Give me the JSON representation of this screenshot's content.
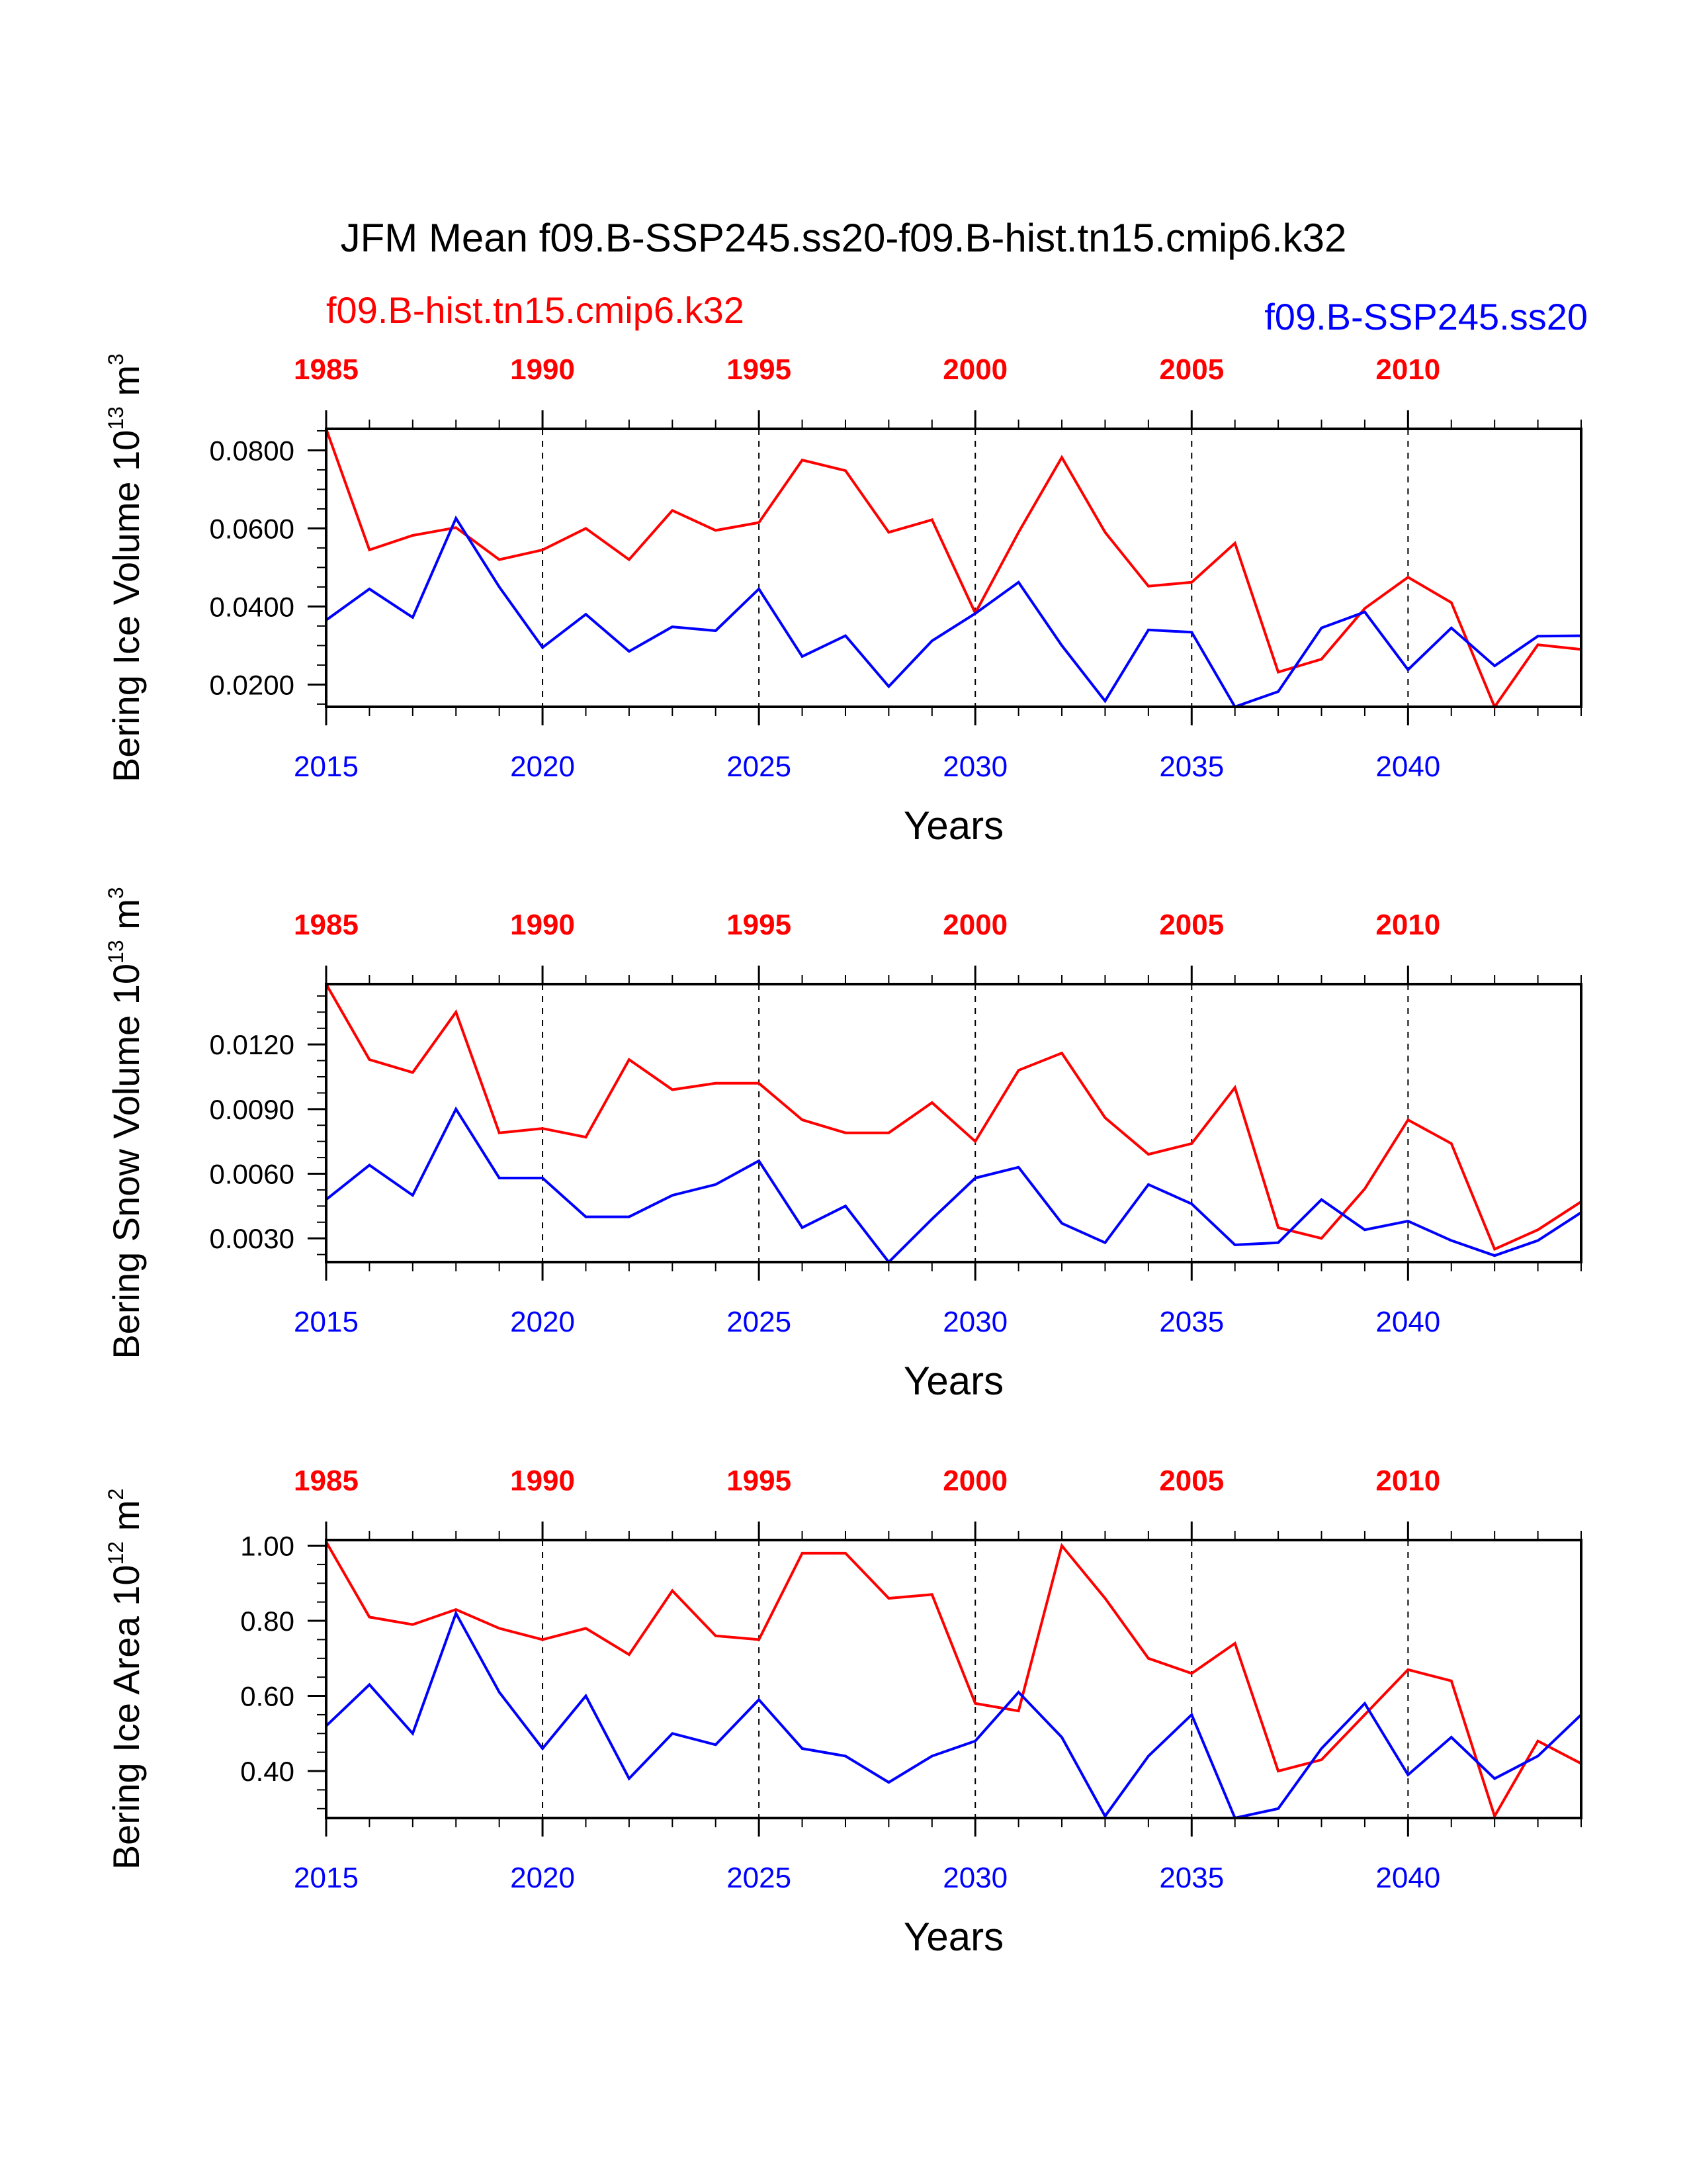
{
  "figure_title": "JFM Mean f09.B-SSP245.ss20-f09.B-hist.tn15.cmip6.k32",
  "legend": {
    "hist_label": "f09.B-hist.tn15.cmip6.k32",
    "ssp_label": "f09.B-SSP245.ss20"
  },
  "colors": {
    "hist": "#ff0000",
    "ssp": "#0000ff",
    "axis": "#000000"
  },
  "chart_data": [
    {
      "type": "line",
      "ylabel": "Bering Ice Volume 10^13 m^3",
      "ylabel_parts": {
        "base": "Bering Ice Volume 10",
        "exp": "13",
        "unit": " m",
        "unit_exp": "3"
      },
      "xlabel": "Years",
      "x_bottom": [
        2015,
        2016,
        2017,
        2018,
        2019,
        2020,
        2021,
        2022,
        2023,
        2024,
        2025,
        2026,
        2027,
        2028,
        2029,
        2030,
        2031,
        2032,
        2033,
        2034,
        2035,
        2036,
        2037,
        2038,
        2039,
        2040,
        2041,
        2042,
        2043,
        2044
      ],
      "x_top": [
        1985,
        1986,
        1987,
        1988,
        1989,
        1990,
        1991,
        1992,
        1993,
        1994,
        1995,
        1996,
        1997,
        1998,
        1999,
        2000,
        2001,
        2002,
        2003,
        2004,
        2005,
        2006,
        2007,
        2008,
        2009,
        2010,
        2011,
        2012,
        2013,
        2014
      ],
      "bottom_ticks": [
        "2015",
        "2020",
        "2025",
        "2030",
        "2035",
        "2040"
      ],
      "top_ticks": [
        "1985",
        "1990",
        "1995",
        "2000",
        "2005",
        "2010"
      ],
      "y_ticks": [
        "0.0200",
        "0.0400",
        "0.0600",
        "0.0800"
      ],
      "y_tick_values": [
        0.02,
        0.04,
        0.06,
        0.08
      ],
      "ylim": [
        0.0143,
        0.0855
      ],
      "grid": "dashed vertical lines at every 5 years",
      "series": [
        {
          "name": "f09.B-hist.tn15.cmip6.k32",
          "color": "#ff0000",
          "values": [
            0.0855,
            0.0545,
            0.0582,
            0.0602,
            0.052,
            0.0545,
            0.06,
            0.052,
            0.0646,
            0.0595,
            0.0615,
            0.0775,
            0.0748,
            0.059,
            0.0622,
            0.0383,
            0.059,
            0.0782,
            0.059,
            0.0452,
            0.0462,
            0.0562,
            0.0232,
            0.0265,
            0.0395,
            0.0475,
            0.041,
            0.0143,
            0.0302,
            0.029
          ]
        },
        {
          "name": "f09.B-SSP245.ss20",
          "color": "#0000ff",
          "values": [
            0.0365,
            0.0445,
            0.0372,
            0.0626,
            0.045,
            0.0295,
            0.038,
            0.0285,
            0.0348,
            0.0338,
            0.0445,
            0.0272,
            0.0325,
            0.0195,
            0.0312,
            0.0382,
            0.0462,
            0.03,
            0.0158,
            0.034,
            0.0334,
            0.0143,
            0.0182,
            0.0345,
            0.0386,
            0.0238,
            0.0345,
            0.0248,
            0.0324,
            0.0325
          ]
        }
      ]
    },
    {
      "type": "line",
      "ylabel": "Bering Snow Volume 10^13 m^3",
      "ylabel_parts": {
        "base": "Bering Snow Volume 10",
        "exp": "13",
        "unit": " m",
        "unit_exp": "3"
      },
      "xlabel": "Years",
      "x_bottom": [
        2015,
        2016,
        2017,
        2018,
        2019,
        2020,
        2021,
        2022,
        2023,
        2024,
        2025,
        2026,
        2027,
        2028,
        2029,
        2030,
        2031,
        2032,
        2033,
        2034,
        2035,
        2036,
        2037,
        2038,
        2039,
        2040,
        2041,
        2042,
        2043,
        2044
      ],
      "x_top": [
        1985,
        1986,
        1987,
        1988,
        1989,
        1990,
        1991,
        1992,
        1993,
        1994,
        1995,
        1996,
        1997,
        1998,
        1999,
        2000,
        2001,
        2002,
        2003,
        2004,
        2005,
        2006,
        2007,
        2008,
        2009,
        2010,
        2011,
        2012,
        2013,
        2014
      ],
      "bottom_ticks": [
        "2015",
        "2020",
        "2025",
        "2030",
        "2035",
        "2040"
      ],
      "top_ticks": [
        "1985",
        "1990",
        "1995",
        "2000",
        "2005",
        "2010"
      ],
      "y_ticks": [
        "0.0030",
        "0.0060",
        "0.0090",
        "0.0120"
      ],
      "y_tick_values": [
        0.003,
        0.006,
        0.009,
        0.012
      ],
      "ylim": [
        0.0019,
        0.0148
      ],
      "grid": "dashed vertical lines at every 5 years",
      "series": [
        {
          "name": "f09.B-hist.tn15.cmip6.k32",
          "color": "#ff0000",
          "values": [
            0.0148,
            0.0113,
            0.0107,
            0.0135,
            0.0079,
            0.0081,
            0.0077,
            0.0113,
            0.0099,
            0.0102,
            0.0102,
            0.0085,
            0.0079,
            0.0079,
            0.0093,
            0.0075,
            0.0108,
            0.0116,
            0.0086,
            0.0069,
            0.0074,
            0.01,
            0.0035,
            0.003,
            0.0053,
            0.0085,
            0.0074,
            0.0025,
            0.0034,
            0.0047
          ]
        },
        {
          "name": "f09.B-SSP245.ss20",
          "color": "#0000ff",
          "values": [
            0.0048,
            0.0064,
            0.005,
            0.009,
            0.0058,
            0.0058,
            0.004,
            0.004,
            0.005,
            0.0055,
            0.0066,
            0.0035,
            0.0045,
            0.0019,
            0.0039,
            0.0058,
            0.0063,
            0.0037,
            0.0028,
            0.0055,
            0.0046,
            0.0027,
            0.0028,
            0.0048,
            0.0034,
            0.0038,
            0.0029,
            0.0022,
            0.0029,
            0.0042
          ]
        }
      ]
    },
    {
      "type": "line",
      "ylabel": "Bering Ice Area 10^12 m^2",
      "ylabel_parts": {
        "base": "Bering Ice Area 10",
        "exp": "12",
        "unit": " m",
        "unit_exp": "2"
      },
      "xlabel": "Years",
      "x_bottom": [
        2015,
        2016,
        2017,
        2018,
        2019,
        2020,
        2021,
        2022,
        2023,
        2024,
        2025,
        2026,
        2027,
        2028,
        2029,
        2030,
        2031,
        2032,
        2033,
        2034,
        2035,
        2036,
        2037,
        2038,
        2039,
        2040,
        2041,
        2042,
        2043,
        2044
      ],
      "x_top": [
        1985,
        1986,
        1987,
        1988,
        1989,
        1990,
        1991,
        1992,
        1993,
        1994,
        1995,
        1996,
        1997,
        1998,
        1999,
        2000,
        2001,
        2002,
        2003,
        2004,
        2005,
        2006,
        2007,
        2008,
        2009,
        2010,
        2011,
        2012,
        2013,
        2014
      ],
      "bottom_ticks": [
        "2015",
        "2020",
        "2025",
        "2030",
        "2035",
        "2040"
      ],
      "top_ticks": [
        "1985",
        "1990",
        "1995",
        "2000",
        "2005",
        "2010"
      ],
      "y_ticks": [
        "0.40",
        "0.60",
        "0.80",
        "1.00"
      ],
      "y_tick_values": [
        0.4,
        0.6,
        0.8,
        1.0
      ],
      "ylim": [
        0.275,
        1.015
      ],
      "grid": "dashed vertical lines at every 5 years",
      "series": [
        {
          "name": "f09.B-hist.tn15.cmip6.k32",
          "color": "#ff0000",
          "values": [
            1.01,
            0.81,
            0.79,
            0.83,
            0.78,
            0.75,
            0.78,
            0.71,
            0.88,
            0.76,
            0.75,
            0.98,
            0.98,
            0.86,
            0.87,
            0.58,
            0.56,
            1.0,
            0.86,
            0.7,
            0.66,
            0.74,
            0.4,
            0.43,
            0.55,
            0.67,
            0.64,
            0.28,
            0.48,
            0.42
          ]
        },
        {
          "name": "f09.B-SSP245.ss20",
          "color": "#0000ff",
          "values": [
            0.52,
            0.63,
            0.5,
            0.82,
            0.61,
            0.46,
            0.6,
            0.38,
            0.5,
            0.47,
            0.59,
            0.46,
            0.44,
            0.37,
            0.44,
            0.48,
            0.61,
            0.49,
            0.28,
            0.44,
            0.55,
            0.275,
            0.3,
            0.46,
            0.58,
            0.39,
            0.49,
            0.38,
            0.44,
            0.55
          ]
        }
      ]
    }
  ]
}
